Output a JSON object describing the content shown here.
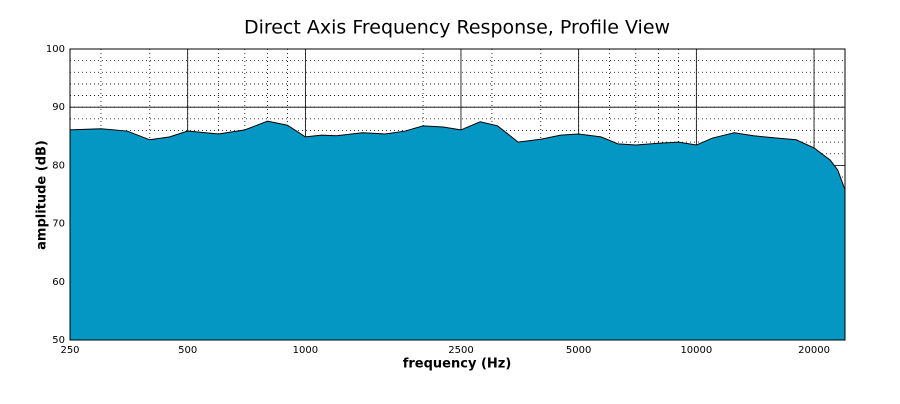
{
  "chart_data": {
    "type": "area",
    "title": "Direct Axis Frequency Response, Profile View",
    "xlabel": "frequency (Hz)",
    "ylabel": "amplitude (dB)",
    "x": [
      250,
      300,
      350,
      400,
      450,
      500,
      600,
      700,
      800,
      900,
      1000,
      1100,
      1200,
      1400,
      1600,
      1800,
      2000,
      2250,
      2500,
      2800,
      3100,
      3500,
      4000,
      4500,
      5000,
      5700,
      6300,
      7000,
      8000,
      9000,
      10000,
      11000,
      12500,
      14000,
      16000,
      18000,
      20000,
      22000,
      23000,
      24000
    ],
    "values": [
      86.1,
      86.3,
      85.9,
      84.4,
      84.9,
      85.9,
      85.4,
      86.1,
      87.6,
      86.9,
      84.9,
      85.2,
      85.1,
      85.6,
      85.4,
      85.9,
      86.8,
      86.6,
      86.1,
      87.5,
      86.8,
      84.0,
      84.5,
      85.2,
      85.4,
      84.9,
      83.7,
      83.5,
      83.8,
      84.0,
      83.5,
      84.7,
      85.6,
      85.1,
      84.7,
      84.4,
      83.0,
      80.9,
      79.2,
      75.8
    ],
    "color": "#0497c4",
    "xscale": "log",
    "xlim": [
      250,
      24000
    ],
    "ylim": [
      50,
      100
    ],
    "xticks": [
      250,
      500,
      1000,
      2500,
      5000,
      10000,
      20000
    ],
    "yticks": [
      50,
      60,
      70,
      80,
      90,
      100
    ],
    "grid": true,
    "minor_grid": true
  }
}
